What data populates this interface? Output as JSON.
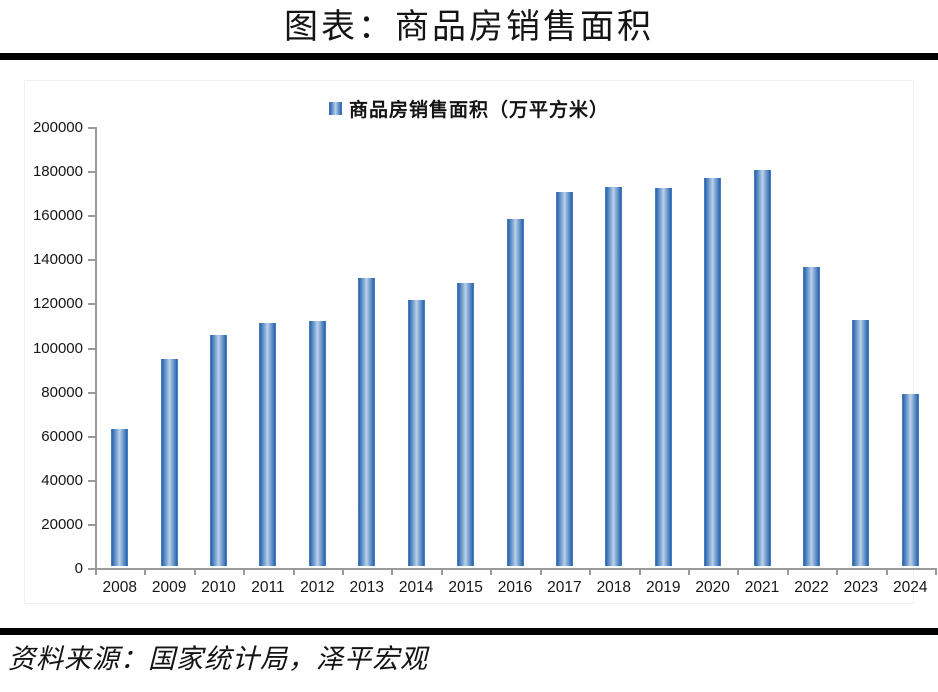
{
  "page": {
    "title": "图表：商品房销售面积",
    "source": "资料来源：国家统计局，泽平宏观"
  },
  "legend": {
    "label": "商品房销售面积（万平方米）"
  },
  "chart_data": {
    "type": "bar",
    "title": "图表：商品房销售面积",
    "legend_entries": [
      "商品房销售面积（万平方米）"
    ],
    "legend_position": "top-center",
    "categories": [
      "2008",
      "2009",
      "2010",
      "2011",
      "2012",
      "2013",
      "2014",
      "2015",
      "2016",
      "2017",
      "2018",
      "2019",
      "2020",
      "2021",
      "2022",
      "2023",
      "2024"
    ],
    "values": [
      62000,
      93800,
      104800,
      110000,
      111300,
      130600,
      120600,
      128500,
      157300,
      169400,
      171700,
      171500,
      176100,
      179400,
      135800,
      111700,
      78000
    ],
    "xlabel": "",
    "ylabel": "",
    "ylim": [
      0,
      200000
    ],
    "y_ticks": [
      0,
      20000,
      40000,
      60000,
      80000,
      100000,
      120000,
      140000,
      160000,
      180000,
      200000
    ],
    "grid": false,
    "colors": {
      "bar_edge": "#2a67b0",
      "bar_outer": "#5b89c0",
      "bar_mid": "#90b2d9",
      "bar_center": "#bdd1ea",
      "axis": "#9a9a9a",
      "text": "#141414",
      "divider": "#000000"
    }
  }
}
